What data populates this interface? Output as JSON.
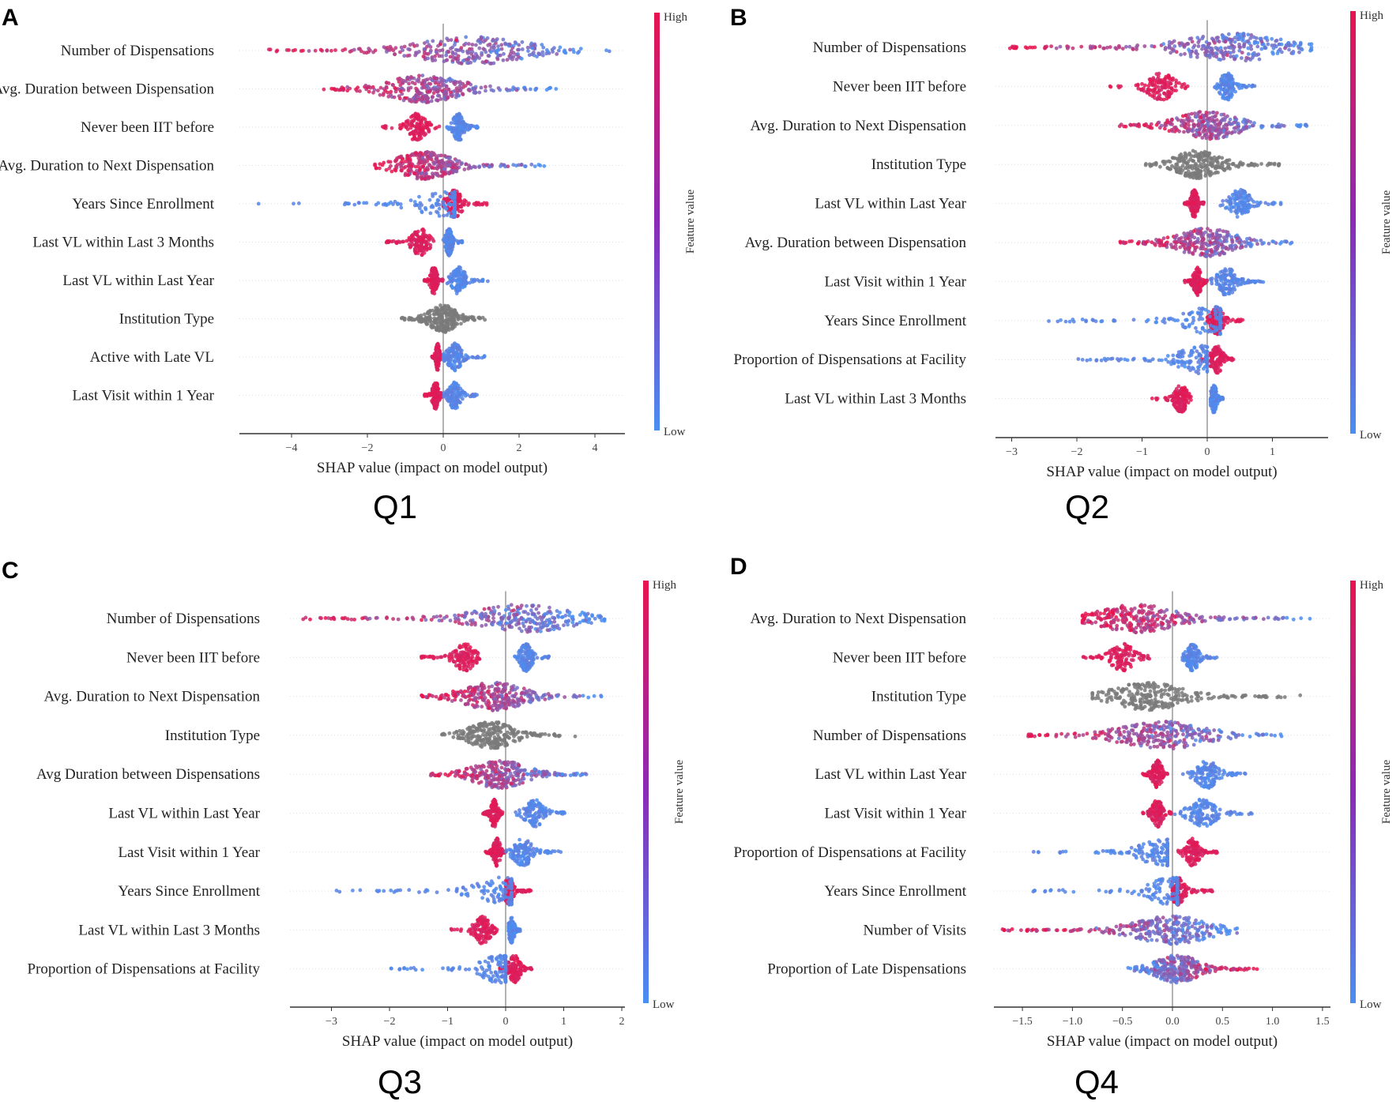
{
  "colors": {
    "high": "#e8144f",
    "low": "#4a8ef2",
    "neutral": "#7a7a7a"
  },
  "colorbar": {
    "high_label": "High",
    "low_label": "Low",
    "title": "Feature value"
  },
  "chart_data": [
    {
      "type": "scatter",
      "subtype": "shap-beeswarm",
      "panel_letter": "A",
      "caption": "Q1",
      "xlabel": "SHAP value (impact on model output)",
      "xlim": [
        -5.36,
        4.8
      ],
      "ticks": [
        -4,
        -2,
        0,
        2,
        4
      ],
      "tick_labels": [
        "−4",
        "−2",
        "0",
        "2",
        "4"
      ],
      "features": [
        {
          "name": "Number of Dispensations",
          "kind": "continuous",
          "range": [
            -4.7,
            4.4
          ],
          "peak": 0.8,
          "high_side": "left"
        },
        {
          "name": "Avg. Duration between Dispensation",
          "kind": "continuous",
          "range": [
            -3.2,
            3.0
          ],
          "peak": -0.5,
          "high_side": "left"
        },
        {
          "name": "Never been IIT before",
          "kind": "split",
          "high_range": [
            -1.6,
            -0.1
          ],
          "high_peak": -0.7,
          "low_range": [
            0.1,
            1.0
          ],
          "low_peak": 0.4
        },
        {
          "name": "Avg. Duration to Next Dispensation",
          "kind": "continuous",
          "range": [
            -1.8,
            2.7
          ],
          "peak": -0.5,
          "high_side": "left"
        },
        {
          "name": "Years Since Enrollment",
          "kind": "split",
          "low_range": [
            -5.0,
            0.3
          ],
          "low_peak": 0.2,
          "high_range": [
            0.0,
            1.2
          ],
          "high_peak": 0.3
        },
        {
          "name": "Last VL within Last 3 Months",
          "kind": "split",
          "high_range": [
            -1.5,
            -0.2
          ],
          "high_peak": -0.6,
          "low_range": [
            0.0,
            0.5
          ],
          "low_peak": 0.15
        },
        {
          "name": "Last VL within Last Year",
          "kind": "split",
          "high_range": [
            -0.5,
            0.0
          ],
          "high_peak": -0.25,
          "low_range": [
            0.1,
            1.2
          ],
          "low_peak": 0.4
        },
        {
          "name": "Institution Type",
          "kind": "gray",
          "range": [
            -1.1,
            1.1
          ],
          "peak": 0.0
        },
        {
          "name": "Active with Late VL",
          "kind": "split",
          "high_range": [
            -0.3,
            0.0
          ],
          "high_peak": -0.15,
          "low_range": [
            0.0,
            1.1
          ],
          "low_peak": 0.3
        },
        {
          "name": "Last Visit within 1 Year",
          "kind": "split",
          "high_range": [
            -0.5,
            0.0
          ],
          "high_peak": -0.2,
          "low_range": [
            0.0,
            0.9
          ],
          "low_peak": 0.3
        }
      ]
    },
    {
      "type": "scatter",
      "subtype": "shap-beeswarm",
      "panel_letter": "B",
      "caption": "Q2",
      "xlabel": "SHAP value (impact on model output)",
      "xlim": [
        -3.25,
        1.86
      ],
      "ticks": [
        -3,
        -2,
        -1,
        0,
        1
      ],
      "tick_labels": [
        "−3",
        "−2",
        "−1",
        "0",
        "1"
      ],
      "features": [
        {
          "name": "Number of Dispensations",
          "kind": "continuous",
          "range": [
            -3.1,
            1.6
          ],
          "peak": 0.4,
          "high_side": "left"
        },
        {
          "name": "Never been IIT before",
          "kind": "split",
          "high_range": [
            -1.5,
            -0.3
          ],
          "high_peak": -0.7,
          "low_range": [
            0.1,
            0.75
          ],
          "low_peak": 0.3
        },
        {
          "name": "Avg. Duration to Next Dispensation",
          "kind": "continuous",
          "range": [
            -1.35,
            1.55
          ],
          "peak": 0.0,
          "high_side": "left"
        },
        {
          "name": "Institution Type",
          "kind": "gray",
          "range": [
            -0.95,
            1.15
          ],
          "peak": -0.15
        },
        {
          "name": "Last VL within Last Year",
          "kind": "split",
          "high_range": [
            -0.35,
            -0.05
          ],
          "high_peak": -0.2,
          "low_range": [
            0.2,
            1.15
          ],
          "low_peak": 0.5
        },
        {
          "name": "Avg. Duration between Dispensation",
          "kind": "continuous",
          "range": [
            -1.35,
            1.4
          ],
          "peak": 0.0,
          "high_side": "left"
        },
        {
          "name": "Last Visit within 1 Year",
          "kind": "split",
          "high_range": [
            -0.35,
            0.0
          ],
          "high_peak": -0.15,
          "low_range": [
            0.05,
            0.9
          ],
          "low_peak": 0.3
        },
        {
          "name": "Years Since Enrollment",
          "kind": "split",
          "low_range": [
            -2.5,
            0.2
          ],
          "low_peak": 0.1,
          "high_range": [
            0.0,
            0.55
          ],
          "high_peak": 0.15
        },
        {
          "name": "Proportion of Dispensations at Facility",
          "kind": "split",
          "low_range": [
            -2.0,
            0.0
          ],
          "low_peak": -0.1,
          "high_range": [
            -0.1,
            0.45
          ],
          "high_peak": 0.15
        },
        {
          "name": "Last VL within Last 3 Months",
          "kind": "split",
          "high_range": [
            -0.85,
            -0.25
          ],
          "high_peak": -0.4,
          "low_range": [
            0.05,
            0.25
          ],
          "low_peak": 0.1
        }
      ]
    },
    {
      "type": "scatter",
      "subtype": "shap-beeswarm",
      "panel_letter": "C",
      "caption": "Q3",
      "xlabel": "SHAP value (impact on model output)",
      "xlim": [
        -3.7,
        2.06
      ],
      "ticks": [
        -3,
        -2,
        -1,
        0,
        1,
        2
      ],
      "tick_labels": [
        "−3",
        "−2",
        "−1",
        "0",
        "1",
        "2"
      ],
      "features": [
        {
          "name": "Number of Dispensations",
          "kind": "continuous",
          "range": [
            -3.5,
            1.7
          ],
          "peak": 0.3,
          "high_side": "left"
        },
        {
          "name": "Never been IIT before",
          "kind": "split",
          "high_range": [
            -1.45,
            -0.45
          ],
          "high_peak": -0.7,
          "low_range": [
            0.15,
            0.75
          ],
          "low_peak": 0.35
        },
        {
          "name": "Avg. Duration to Next Dispensation",
          "kind": "continuous",
          "range": [
            -1.45,
            1.75
          ],
          "peak": -0.2,
          "high_side": "left"
        },
        {
          "name": "Institution Type",
          "kind": "gray",
          "range": [
            -1.1,
            1.2
          ],
          "peak": -0.25
        },
        {
          "name": "Avg Duration between Dispensations",
          "kind": "continuous",
          "range": [
            -1.35,
            1.4
          ],
          "peak": -0.1,
          "high_side": "left"
        },
        {
          "name": "Last VL within Last Year",
          "kind": "split",
          "high_range": [
            -0.4,
            -0.05
          ],
          "high_peak": -0.2,
          "low_range": [
            0.15,
            1.1
          ],
          "low_peak": 0.5
        },
        {
          "name": "Last Visit within 1 Year",
          "kind": "split",
          "high_range": [
            -0.35,
            0.0
          ],
          "high_peak": -0.15,
          "low_range": [
            0.0,
            0.95
          ],
          "low_peak": 0.3
        },
        {
          "name": "Years Since Enrollment",
          "kind": "split",
          "low_range": [
            -2.95,
            0.1
          ],
          "low_peak": 0.0,
          "high_range": [
            0.0,
            0.45
          ],
          "high_peak": 0.05
        },
        {
          "name": "Last VL within Last 3 Months",
          "kind": "split",
          "high_range": [
            -0.95,
            -0.15
          ],
          "high_peak": -0.4,
          "low_range": [
            0.05,
            0.25
          ],
          "low_peak": 0.1
        },
        {
          "name": "Proportion of Dispensations at Facility",
          "kind": "split",
          "low_range": [
            -2.0,
            0.0
          ],
          "low_peak": -0.1,
          "high_range": [
            -0.1,
            0.45
          ],
          "high_peak": 0.15
        }
      ]
    },
    {
      "type": "scatter",
      "subtype": "shap-beeswarm",
      "panel_letter": "D",
      "caption": "Q4",
      "xlabel": "SHAP value (impact on model output)",
      "xlim": [
        -1.79,
        1.58
      ],
      "ticks": [
        -1.5,
        -1.0,
        -0.5,
        0.0,
        0.5,
        1.0,
        1.5
      ],
      "tick_labels": [
        "−1.5",
        "−1.0",
        "−0.5",
        "0.0",
        "0.5",
        "1.0",
        "1.5"
      ],
      "features": [
        {
          "name": "Avg. Duration to Next Dispensation",
          "kind": "continuous",
          "range": [
            -0.9,
            1.45
          ],
          "peak": -0.35,
          "high_side": "left"
        },
        {
          "name": "Never been IIT before",
          "kind": "split",
          "high_range": [
            -0.9,
            -0.2
          ],
          "high_peak": -0.5,
          "low_range": [
            0.1,
            0.45
          ],
          "low_peak": 0.2
        },
        {
          "name": "Institution Type",
          "kind": "gray",
          "range": [
            -0.8,
            1.3
          ],
          "peak": -0.25
        },
        {
          "name": "Number of Dispensations",
          "kind": "continuous",
          "range": [
            -1.5,
            1.1
          ],
          "peak": -0.1,
          "high_side": "left"
        },
        {
          "name": "Last VL within Last Year",
          "kind": "split",
          "high_range": [
            -0.3,
            -0.05
          ],
          "high_peak": -0.15,
          "low_range": [
            0.1,
            0.75
          ],
          "low_peak": 0.35
        },
        {
          "name": "Last Visit within 1 Year",
          "kind": "split",
          "high_range": [
            -0.3,
            0.0
          ],
          "high_peak": -0.15,
          "low_range": [
            0.0,
            0.8
          ],
          "low_peak": 0.3
        },
        {
          "name": "Proportion of Dispensations at Facility",
          "kind": "split",
          "low_range": [
            -1.4,
            -0.05
          ],
          "low_peak": -0.1,
          "high_range": [
            0.05,
            0.45
          ],
          "high_peak": 0.2
        },
        {
          "name": "Years Since Enrollment",
          "kind": "split",
          "low_range": [
            -1.4,
            0.05
          ],
          "low_peak": 0.0,
          "high_range": [
            0.0,
            0.4
          ],
          "high_peak": 0.05
        },
        {
          "name": "Number of Visits",
          "kind": "continuous",
          "range": [
            -1.7,
            0.65
          ],
          "peak": 0.0,
          "high_side": "left"
        },
        {
          "name": "Proportion of Late Dispensations",
          "kind": "continuous",
          "range": [
            -0.45,
            0.85
          ],
          "peak": 0.05,
          "high_side": "right"
        }
      ]
    }
  ]
}
